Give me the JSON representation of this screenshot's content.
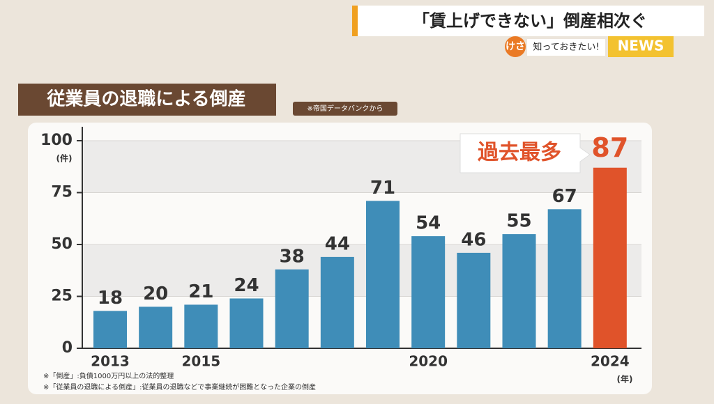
{
  "header": {
    "headline": "「賃上げできない」倒産相次ぐ",
    "corner": "けさ",
    "segment": "知っておきたい!",
    "brand": "NEWS"
  },
  "chart_data": {
    "type": "bar",
    "title": "従業員の退職による倒産",
    "source": "※帝国データバンクから",
    "y_unit": "(件)",
    "x_unit": "(年)",
    "annotation": "過去最多",
    "categories": [
      "2013",
      null,
      "2015",
      null,
      null,
      null,
      null,
      "2020",
      null,
      null,
      null,
      "2024"
    ],
    "values": [
      18,
      20,
      21,
      24,
      38,
      44,
      71,
      54,
      46,
      55,
      67,
      87
    ],
    "colors": [
      "#3f8db8",
      "#3f8db8",
      "#3f8db8",
      "#3f8db8",
      "#3f8db8",
      "#3f8db8",
      "#3f8db8",
      "#3f8db8",
      "#3f8db8",
      "#3f8db8",
      "#3f8db8",
      "#e0532a"
    ],
    "label_colors": [
      "#333333",
      "#333333",
      "#333333",
      "#333333",
      "#333333",
      "#333333",
      "#333333",
      "#333333",
      "#333333",
      "#333333",
      "#333333",
      "#e0532a"
    ],
    "ylim": [
      0,
      100
    ],
    "yticks": [
      0,
      25,
      50,
      75,
      100
    ],
    "grid": true,
    "notes": [
      "※「倒産」:負債1000万円以上の法的整理",
      "※「従業員の退職による倒産」:従業員の退職などで事業継続が困難となった企業の倒産"
    ]
  }
}
